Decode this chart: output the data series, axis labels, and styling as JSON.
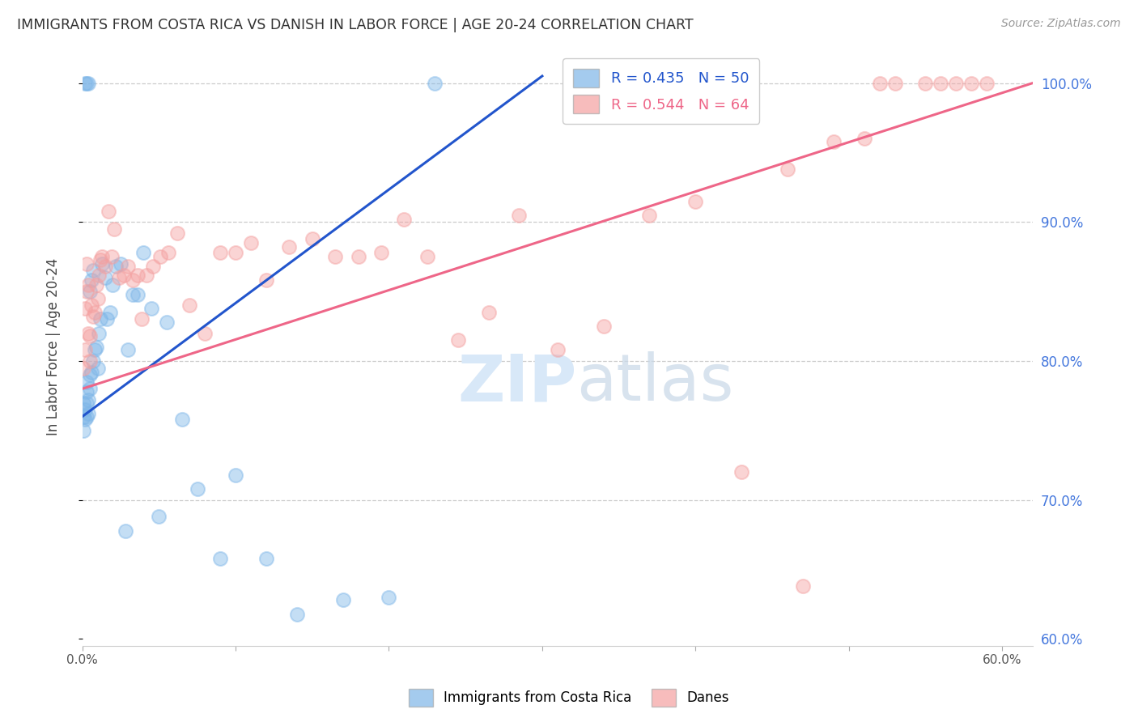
{
  "title": "IMMIGRANTS FROM COSTA RICA VS DANISH IN LABOR FORCE | AGE 20-24 CORRELATION CHART",
  "source": "Source: ZipAtlas.com",
  "ylabel": "In Labor Force | Age 20-24",
  "blue_R": 0.435,
  "blue_N": 50,
  "pink_R": 0.544,
  "pink_N": 64,
  "legend_blue": "Immigrants from Costa Rica",
  "legend_pink": "Danes",
  "xlim": [
    0.0,
    0.62
  ],
  "ylim": [
    0.595,
    1.025
  ],
  "blue_color": "#7EB6E8",
  "pink_color": "#F4A0A0",
  "blue_line_color": "#2255CC",
  "pink_line_color": "#EE6688",
  "right_axis_color": "#4477DD",
  "watermark_color": "#D8E8F8",
  "background_color": "#FFFFFF",
  "blue_x": [
    0.001,
    0.001,
    0.001,
    0.002,
    0.002,
    0.002,
    0.003,
    0.003,
    0.003,
    0.003,
    0.003,
    0.004,
    0.004,
    0.004,
    0.005,
    0.005,
    0.005,
    0.006,
    0.006,
    0.007,
    0.007,
    0.008,
    0.009,
    0.01,
    0.011,
    0.012,
    0.013,
    0.015,
    0.016,
    0.018,
    0.02,
    0.022,
    0.025,
    0.028,
    0.03,
    0.033,
    0.036,
    0.04,
    0.045,
    0.05,
    0.055,
    0.065,
    0.075,
    0.09,
    0.1,
    0.12,
    0.14,
    0.17,
    0.2,
    0.23
  ],
  "blue_y": [
    0.75,
    0.76,
    0.77,
    0.758,
    0.765,
    1.0,
    0.76,
    0.77,
    0.778,
    0.785,
    1.0,
    0.762,
    0.772,
    1.0,
    0.78,
    0.79,
    0.85,
    0.792,
    0.858,
    0.8,
    0.865,
    0.808,
    0.81,
    0.795,
    0.82,
    0.83,
    0.87,
    0.86,
    0.83,
    0.835,
    0.855,
    0.868,
    0.87,
    0.678,
    0.808,
    0.848,
    0.848,
    0.878,
    0.838,
    0.688,
    0.828,
    0.758,
    0.708,
    0.658,
    0.718,
    0.658,
    0.618,
    0.628,
    0.63,
    1.0
  ],
  "pink_x": [
    0.001,
    0.002,
    0.002,
    0.003,
    0.003,
    0.004,
    0.004,
    0.005,
    0.005,
    0.006,
    0.007,
    0.008,
    0.009,
    0.01,
    0.011,
    0.012,
    0.013,
    0.015,
    0.017,
    0.019,
    0.021,
    0.024,
    0.027,
    0.03,
    0.033,
    0.036,
    0.039,
    0.042,
    0.046,
    0.051,
    0.056,
    0.062,
    0.07,
    0.08,
    0.09,
    0.1,
    0.11,
    0.12,
    0.135,
    0.15,
    0.165,
    0.18,
    0.195,
    0.21,
    0.225,
    0.245,
    0.265,
    0.285,
    0.31,
    0.34,
    0.37,
    0.4,
    0.43,
    0.46,
    0.49,
    0.51,
    0.53,
    0.55,
    0.56,
    0.57,
    0.58,
    0.59,
    0.52,
    0.47
  ],
  "pink_y": [
    0.795,
    0.808,
    0.838,
    0.87,
    0.85,
    0.82,
    0.855,
    0.818,
    0.8,
    0.84,
    0.832,
    0.835,
    0.855,
    0.845,
    0.862,
    0.873,
    0.875,
    0.868,
    0.908,
    0.875,
    0.895,
    0.86,
    0.862,
    0.868,
    0.858,
    0.862,
    0.83,
    0.862,
    0.868,
    0.875,
    0.878,
    0.892,
    0.84,
    0.82,
    0.878,
    0.878,
    0.885,
    0.858,
    0.882,
    0.888,
    0.875,
    0.875,
    0.878,
    0.902,
    0.875,
    0.815,
    0.835,
    0.905,
    0.808,
    0.825,
    0.905,
    0.915,
    0.72,
    0.938,
    0.958,
    0.96,
    1.0,
    1.0,
    1.0,
    1.0,
    1.0,
    1.0,
    1.0,
    0.638
  ],
  "blue_trendline_x": [
    0.0,
    0.3
  ],
  "blue_trendline_y": [
    0.76,
    1.005
  ],
  "pink_trendline_x": [
    0.0,
    0.62
  ],
  "pink_trendline_y": [
    0.78,
    1.0
  ]
}
